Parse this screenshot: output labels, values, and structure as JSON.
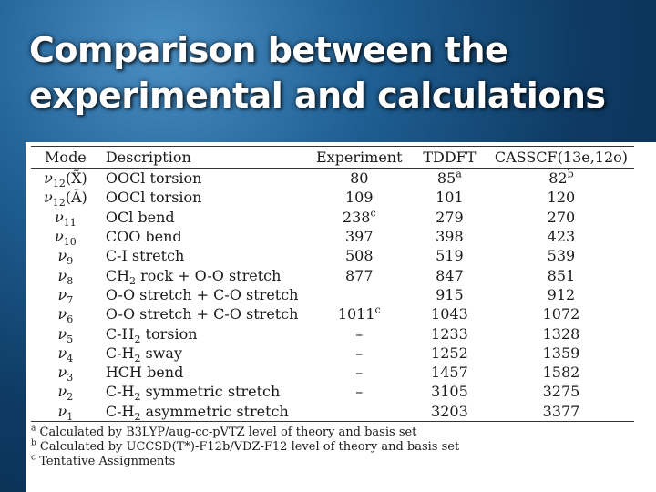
{
  "title": {
    "line1": "Comparison between the",
    "line2": "experimental and calculations"
  },
  "table": {
    "headers": [
      "Mode",
      "Description",
      "Experiment",
      "TDDFT",
      "CASSCF(13e,12o)"
    ],
    "rows": [
      {
        "mode": "ν",
        "mode_sub": "12",
        "mode_suffix": "(X̃)",
        "desc": "OOCl torsion",
        "desc_sub": "",
        "desc_rest": "",
        "exp": "80",
        "exp_sup": "",
        "tddft": "85",
        "tddft_sup": "a",
        "casscf": "82",
        "casscf_sup": "b"
      },
      {
        "mode": "ν",
        "mode_sub": "12",
        "mode_suffix": "(Ã)",
        "desc": "OOCl torsion",
        "desc_sub": "",
        "desc_rest": "",
        "exp": "109",
        "exp_sup": "",
        "tddft": "101",
        "tddft_sup": "",
        "casscf": "120",
        "casscf_sup": ""
      },
      {
        "mode": "ν",
        "mode_sub": "11",
        "mode_suffix": "",
        "desc": "OCl bend",
        "desc_sub": "",
        "desc_rest": "",
        "exp": "238",
        "exp_sup": "c",
        "tddft": "279",
        "tddft_sup": "",
        "casscf": "270",
        "casscf_sup": ""
      },
      {
        "mode": "ν",
        "mode_sub": "10",
        "mode_suffix": "",
        "desc": "COO bend",
        "desc_sub": "",
        "desc_rest": "",
        "exp": "397",
        "exp_sup": "",
        "tddft": "398",
        "tddft_sup": "",
        "casscf": "423",
        "casscf_sup": ""
      },
      {
        "mode": "ν",
        "mode_sub": "9",
        "mode_suffix": "",
        "desc": "C-I stretch",
        "desc_sub": "",
        "desc_rest": "",
        "exp": "508",
        "exp_sup": "",
        "tddft": "519",
        "tddft_sup": "",
        "casscf": "539",
        "casscf_sup": ""
      },
      {
        "mode": "ν",
        "mode_sub": "8",
        "mode_suffix": "",
        "desc": "CH",
        "desc_sub": "2",
        "desc_rest": " rock + O-O stretch",
        "exp": "877",
        "exp_sup": "",
        "tddft": "847",
        "tddft_sup": "",
        "casscf": "851",
        "casscf_sup": ""
      },
      {
        "mode": "ν",
        "mode_sub": "7",
        "mode_suffix": "",
        "desc": "O-O stretch + C-O stretch",
        "desc_sub": "",
        "desc_rest": "",
        "exp": "",
        "exp_sup": "",
        "tddft": "915",
        "tddft_sup": "",
        "casscf": "912",
        "casscf_sup": ""
      },
      {
        "mode": "ν",
        "mode_sub": "6",
        "mode_suffix": "",
        "desc": "O-O stretch + C-O stretch",
        "desc_sub": "",
        "desc_rest": "",
        "exp": "1011",
        "exp_sup": "c",
        "tddft": "1043",
        "tddft_sup": "",
        "casscf": "1072",
        "casscf_sup": ""
      },
      {
        "mode": "ν",
        "mode_sub": "5",
        "mode_suffix": "",
        "desc": "C-H",
        "desc_sub": "2",
        "desc_rest": " torsion",
        "exp": "–",
        "exp_sup": "",
        "tddft": "1233",
        "tddft_sup": "",
        "casscf": "1328",
        "casscf_sup": ""
      },
      {
        "mode": "ν",
        "mode_sub": "4",
        "mode_suffix": "",
        "desc": "C-H",
        "desc_sub": "2",
        "desc_rest": " sway",
        "exp": "–",
        "exp_sup": "",
        "tddft": "1252",
        "tddft_sup": "",
        "casscf": "1359",
        "casscf_sup": ""
      },
      {
        "mode": "ν",
        "mode_sub": "3",
        "mode_suffix": "",
        "desc": "HCH bend",
        "desc_sub": "",
        "desc_rest": "",
        "exp": "–",
        "exp_sup": "",
        "tddft": "1457",
        "tddft_sup": "",
        "casscf": "1582",
        "casscf_sup": ""
      },
      {
        "mode": "ν",
        "mode_sub": "2",
        "mode_suffix": "",
        "desc": "C-H",
        "desc_sub": "2",
        "desc_rest": " symmetric stretch",
        "exp": "–",
        "exp_sup": "",
        "tddft": "3105",
        "tddft_sup": "",
        "casscf": "3275",
        "casscf_sup": ""
      },
      {
        "mode": "ν",
        "mode_sub": "1",
        "mode_suffix": "",
        "desc": "C-H",
        "desc_sub": "2",
        "desc_rest": " asymmetric stretch",
        "exp": "",
        "exp_sup": "",
        "tddft": "3203",
        "tddft_sup": "",
        "casscf": "3377",
        "casscf_sup": ""
      }
    ]
  },
  "footnotes": [
    {
      "mark": "a",
      "text": "Calculated by B3LYP/aug-cc-pVTZ level of theory and basis set"
    },
    {
      "mark": "b",
      "text": "Calculated by UCCSD(T*)-F12b/VDZ-F12 level of theory and basis set"
    },
    {
      "mark": "c",
      "text": "Tentative Assignments"
    }
  ]
}
